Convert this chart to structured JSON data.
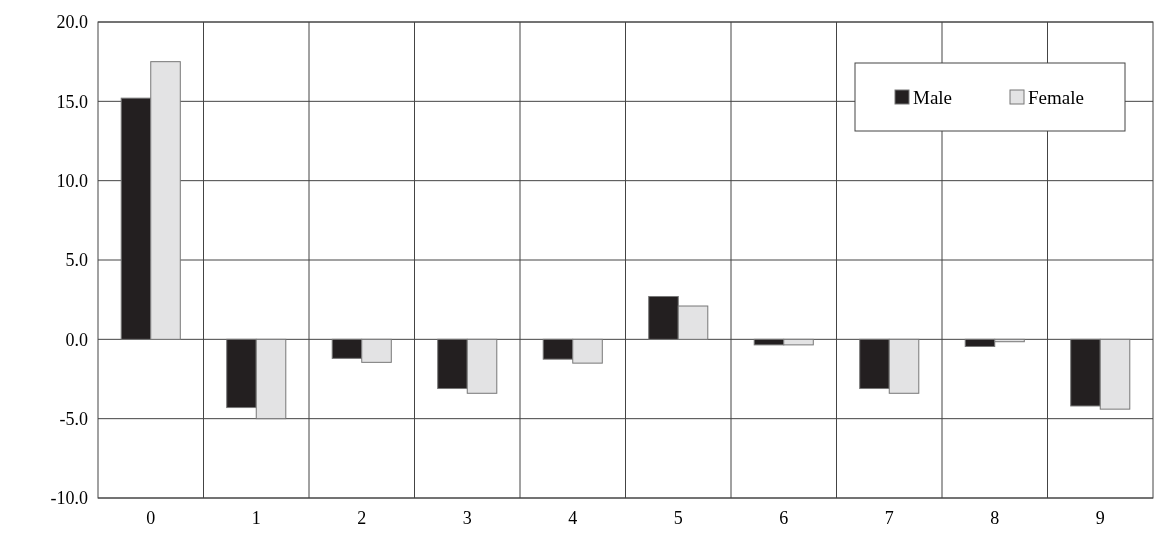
{
  "chart_data": {
    "type": "bar",
    "categories": [
      "0",
      "1",
      "2",
      "3",
      "4",
      "5",
      "6",
      "7",
      "8",
      "9"
    ],
    "series": [
      {
        "name": "Male",
        "color": "#231f20",
        "values": [
          15.2,
          -4.3,
          -1.2,
          -3.1,
          -1.25,
          2.7,
          -0.35,
          -3.1,
          -0.45,
          -4.2
        ]
      },
      {
        "name": "Female",
        "color": "#e3e3e4",
        "values": [
          17.5,
          -5.0,
          -1.45,
          -3.4,
          -1.5,
          2.1,
          -0.35,
          -3.4,
          -0.15,
          -4.4
        ]
      }
    ],
    "ylim": [
      -10,
      20
    ],
    "yticks": [
      {
        "value": -10,
        "label": "-10.0"
      },
      {
        "value": -5,
        "label": "-5.0"
      },
      {
        "value": 0,
        "label": "0.0"
      },
      {
        "value": 5,
        "label": "5.0"
      },
      {
        "value": 10,
        "label": "10.0"
      },
      {
        "value": 15,
        "label": "15.0"
      },
      {
        "value": 20,
        "label": "20.0"
      }
    ],
    "grid": true,
    "legend": "top right"
  }
}
